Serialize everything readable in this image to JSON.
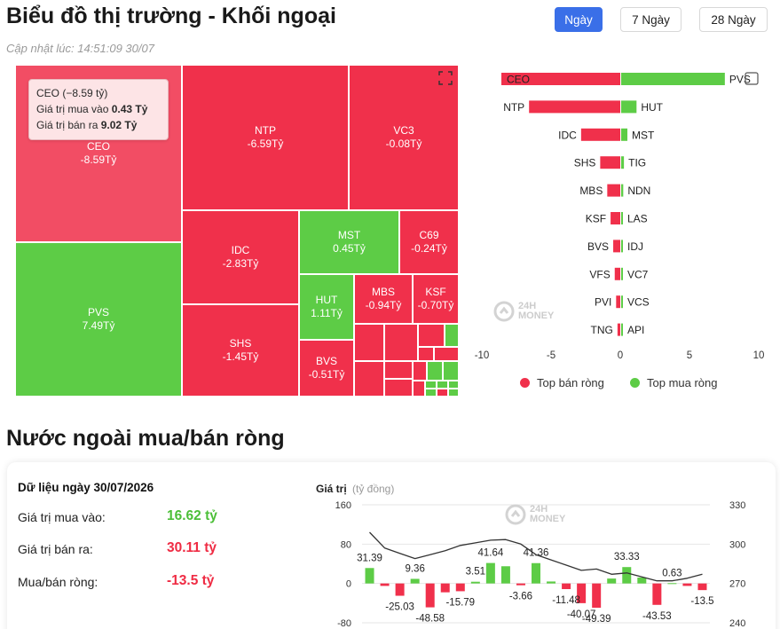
{
  "header": {
    "title": "Biểu đồ thị trường - Khối ngoại",
    "updated": "Cập nhật lúc: 14:51:09 30/07",
    "ranges": [
      "Ngày",
      "7 Ngày",
      "28 Ngày"
    ],
    "active_range": "Ngày"
  },
  "colors": {
    "red": "#f0304b",
    "green": "#5dcc46",
    "light_red": "#f24d64",
    "accent": "#3a6fe8"
  },
  "tooltip": {
    "line1": "CEO (−8.59 tỷ)",
    "buy_label": "Giá trị mua vào",
    "buy_value": "0.43 Tỷ",
    "sell_label": "Giá trị bán ra",
    "sell_value": "9.02 Tỷ"
  },
  "treemap": {
    "tiles": [
      {
        "code": "CEO",
        "value": "-8.59Tỷ",
        "side": "sell"
      },
      {
        "code": "PVS",
        "value": "7.49Tỷ",
        "side": "buy"
      },
      {
        "code": "NTP",
        "value": "-6.59Tỷ",
        "side": "sell"
      },
      {
        "code": "VC3",
        "value": "-0.08Tỷ",
        "side": "sell"
      },
      {
        "code": "IDC",
        "value": "-2.83Tỷ",
        "side": "sell"
      },
      {
        "code": "MST",
        "value": "0.45Tỷ",
        "side": "buy"
      },
      {
        "code": "C69",
        "value": "-0.24Tỷ",
        "side": "sell"
      },
      {
        "code": "SHS",
        "value": "-1.45Tỷ",
        "side": "sell"
      },
      {
        "code": "HUT",
        "value": "1.11Tỷ",
        "side": "buy"
      },
      {
        "code": "MBS",
        "value": "-0.94Tỷ",
        "side": "sell"
      },
      {
        "code": "KSF",
        "value": "-0.70Tỷ",
        "side": "sell"
      },
      {
        "code": "BVS",
        "value": "-0.51Tỷ",
        "side": "sell"
      }
    ]
  },
  "watermark": {
    "line1": "24H",
    "line2": "MONEY"
  },
  "chart_data": [
    {
      "type": "bar",
      "orientation": "horizontal",
      "pairs": [
        {
          "sell": "CEO",
          "buy": "PVS"
        },
        {
          "sell": "NTP",
          "buy": "HUT"
        },
        {
          "sell": "IDC",
          "buy": "MST"
        },
        {
          "sell": "SHS",
          "buy": "TIG"
        },
        {
          "sell": "MBS",
          "buy": "NDN"
        },
        {
          "sell": "KSF",
          "buy": "LAS"
        },
        {
          "sell": "BVS",
          "buy": "IDJ"
        },
        {
          "sell": "VFS",
          "buy": "VC7"
        },
        {
          "sell": "PVI",
          "buy": "VCS"
        },
        {
          "sell": "TNG",
          "buy": "API"
        }
      ],
      "series": [
        {
          "name": "Top bán ròng",
          "values": [
            -8.59,
            -6.59,
            -2.83,
            -1.45,
            -0.94,
            -0.7,
            -0.51,
            -0.4,
            -0.3,
            -0.2
          ]
        },
        {
          "name": "Top mua ròng",
          "values": [
            7.49,
            1.11,
            0.45,
            0.2,
            0.15,
            0.1,
            0.08,
            0.06,
            0.04,
            0.02
          ]
        }
      ],
      "xlim": [
        -10,
        10
      ],
      "xticks": [
        -10,
        -5,
        0,
        5,
        10
      ],
      "legend": [
        "Top bán ròng",
        "Top mua ròng"
      ]
    },
    {
      "type": "bar",
      "ylabel": "Giá trị",
      "ylabel_unit": "(tỷ đồng)",
      "values": [
        31.39,
        -25.03,
        9.36,
        -48.58,
        -15.79,
        3.51,
        41.64,
        -3.66,
        41.36,
        -11.48,
        -40.07,
        -49.39,
        33.33,
        -43.53,
        0.63,
        -13.5
      ],
      "bar_values": [
        31.39,
        -5,
        -25.03,
        9.36,
        -48.58,
        -18,
        -15.79,
        3.51,
        41.64,
        35,
        -3.66,
        41.36,
        4,
        -11.48,
        -40.07,
        -49.39,
        10,
        33.33,
        12,
        -43.53,
        0.63,
        -5,
        -13.5
      ],
      "line_values": [
        309,
        297,
        293,
        289,
        292,
        295,
        299,
        301,
        303,
        303.5,
        300,
        292,
        288,
        284,
        280,
        281,
        277,
        278,
        275,
        272,
        272,
        274,
        277
      ],
      "ylim_left": [
        -80,
        160
      ],
      "yticks_left": [
        -80,
        0,
        80,
        160
      ],
      "ylim_right": [
        240,
        330
      ],
      "yticks_right": [
        240,
        270,
        300,
        330
      ]
    }
  ],
  "summary": {
    "date_title": "Dữ liệu ngày 30/07/2026",
    "buy_label": "Giá trị mua vào:",
    "buy_value": "16.62 tỷ",
    "sell_label": "Giá trị bán ra:",
    "sell_value": "30.11 tỷ",
    "net_label": "Mua/bán ròng:",
    "net_value": "-13.5 tỷ"
  },
  "section_title": "Nước ngoài mua/bán ròng"
}
